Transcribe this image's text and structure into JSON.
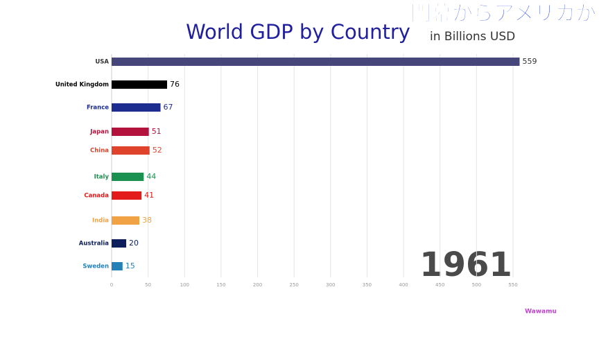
{
  "chart_data": {
    "type": "bar",
    "orientation": "horizontal",
    "title": "World GDP by Country",
    "subtitle": "in Billions USD",
    "banner": "開幕からアメリカが",
    "year": "1961",
    "watermark": "Wawamu",
    "categories": [
      "USA",
      "United Kingdom",
      "France",
      "Japan",
      "China",
      "Italy",
      "Canada",
      "India",
      "Australia",
      "Sweden"
    ],
    "values": [
      559,
      76,
      67,
      51,
      52,
      44,
      41,
      38,
      20,
      15
    ],
    "colors": [
      "#46467a",
      "#000000",
      "#1c2d8f",
      "#b3123d",
      "#e0432b",
      "#1a9150",
      "#e31b1b",
      "#f0a245",
      "#0c1f5c",
      "#2381b8"
    ],
    "xlim": [
      0,
      550
    ],
    "xticks": [
      0,
      50,
      100,
      150,
      200,
      250,
      300,
      350,
      400,
      450,
      500,
      550
    ],
    "grid": true
  }
}
